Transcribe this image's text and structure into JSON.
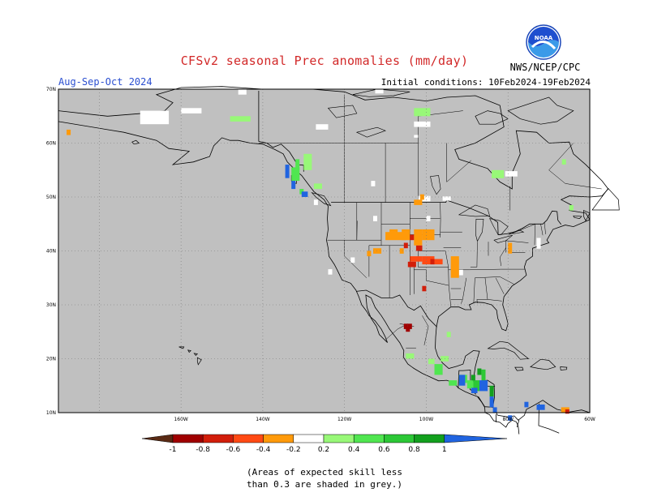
{
  "header": {
    "title": "CFSv2 seasonal Prec anomalies (mm/day)",
    "period": "Aug-Sep-Oct 2024",
    "initial_conditions": "Initial conditions: 10Feb2024-19Feb2024",
    "agency": "NWS/NCEP/CPC",
    "logo_text": "NOAA"
  },
  "map": {
    "region": "North America",
    "projection": "lat-lon",
    "lon_range": [
      -190,
      -60
    ],
    "lat_range": [
      10,
      70
    ],
    "background_color": "#c0c0c0",
    "lat_labels": [
      "70N",
      "60N",
      "50N",
      "40N",
      "30N",
      "20N",
      "10N"
    ],
    "lon_labels": [
      "160W",
      "140W",
      "120W",
      "100W",
      "80W",
      "60W"
    ],
    "gridlines": "dotted"
  },
  "colorbar": {
    "labels": [
      "-1",
      "-0.8",
      "-0.6",
      "-0.4",
      "-0.2",
      "0.2",
      "0.4",
      "0.6",
      "0.8",
      "1"
    ],
    "colors": [
      "#5a2a14",
      "#a00000",
      "#d21e0a",
      "#ff4a14",
      "#ff9a0a",
      "#ffffff",
      "#98f878",
      "#50e650",
      "#2cc836",
      "#12a01e",
      "#2064e0"
    ]
  },
  "note": {
    "line1": "(Areas of expected skill less",
    "line2": "than 0.3 are shaded in grey.)"
  }
}
